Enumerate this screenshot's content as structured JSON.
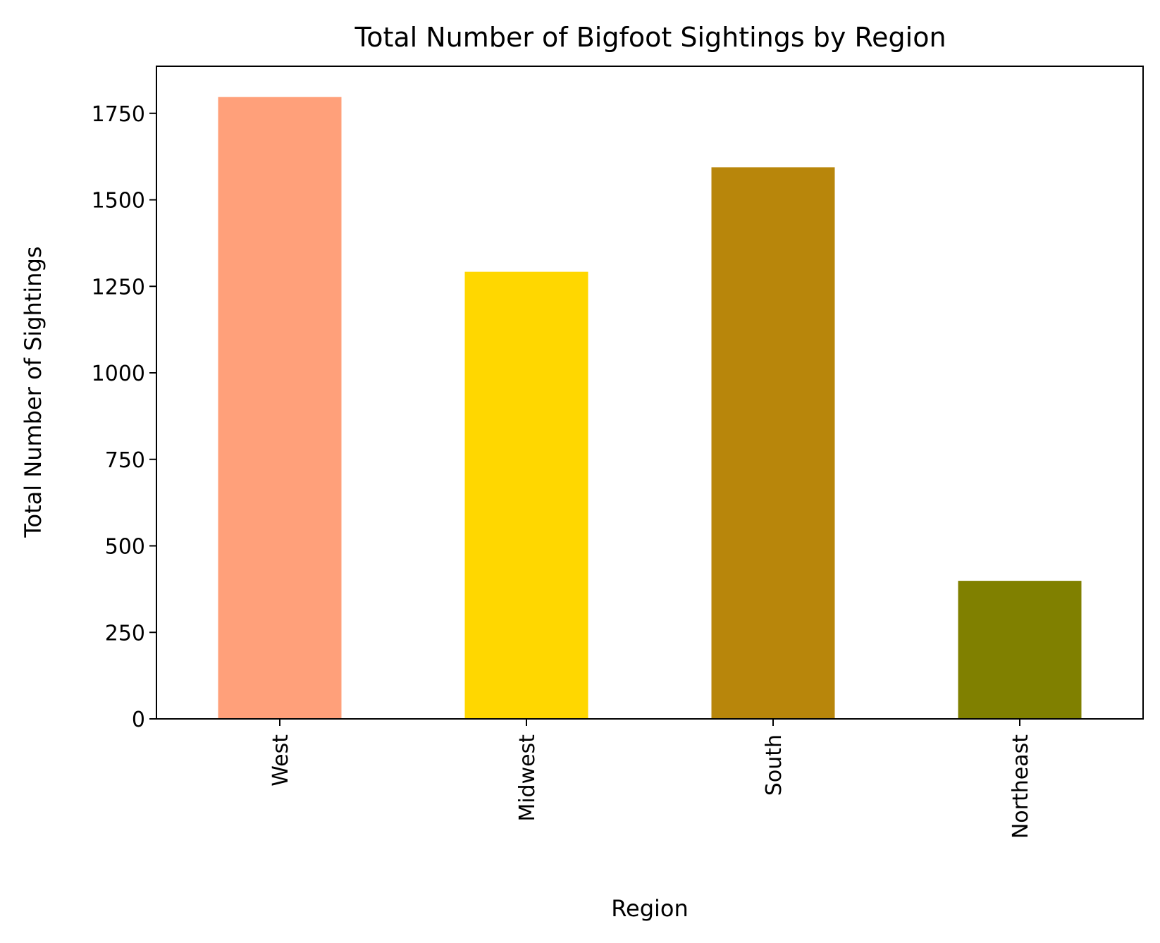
{
  "chart_data": {
    "type": "bar",
    "title": "Total Number of Bigfoot Sightings by Region",
    "xlabel": "Region",
    "ylabel": "Total Number of Sightings",
    "categories": [
      "West",
      "Midwest",
      "South",
      "Northeast"
    ],
    "values": [
      1797,
      1292,
      1594,
      399
    ],
    "colors": [
      "#FFA07A",
      "#FFD700",
      "#B8860B",
      "#808000"
    ],
    "ylim": [
      0,
      1886
    ],
    "yticks": [
      0,
      250,
      500,
      750,
      1000,
      1250,
      1500,
      1750
    ],
    "grid": false,
    "legend": "none"
  }
}
